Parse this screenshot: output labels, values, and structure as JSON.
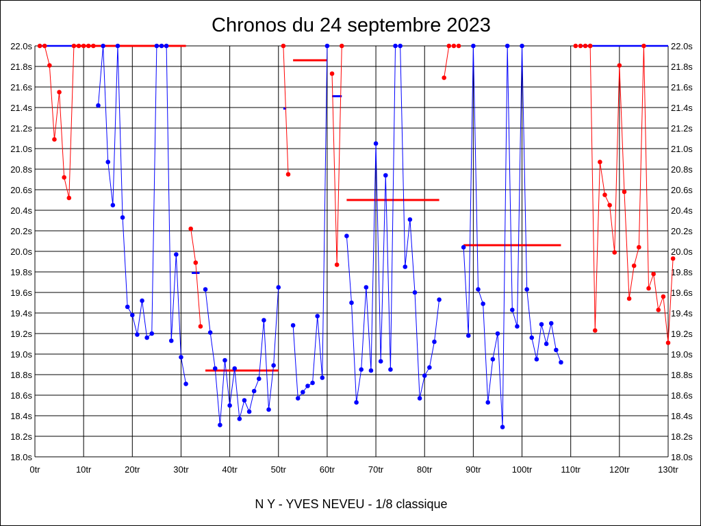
{
  "chart_data": {
    "type": "line",
    "title": "Chronos du 24 septembre 2023",
    "subtitle": "N Y - YVES NEVEU - 1/8 classique",
    "x_range": [
      0,
      130
    ],
    "y_range": [
      18.0,
      22.0
    ],
    "x_ticks": [
      "0tr",
      "10tr",
      "20tr",
      "30tr",
      "40tr",
      "50tr",
      "60tr",
      "70tr",
      "80tr",
      "90tr",
      "100tr",
      "110tr",
      "120tr",
      "130tr"
    ],
    "x_tick_values": [
      0,
      10,
      20,
      30,
      40,
      50,
      60,
      70,
      80,
      90,
      100,
      110,
      120,
      130
    ],
    "y_ticks": [
      "18.0s",
      "18.2s",
      "18.4s",
      "18.6s",
      "18.8s",
      "19.0s",
      "19.2s",
      "19.4s",
      "19.6s",
      "19.8s",
      "20.0s",
      "20.2s",
      "20.4s",
      "20.6s",
      "20.8s",
      "21.0s",
      "21.2s",
      "21.4s",
      "21.6s",
      "21.8s",
      "22.0s"
    ],
    "y_tick_values": [
      18.0,
      18.2,
      18.4,
      18.6,
      18.8,
      19.0,
      19.2,
      19.4,
      19.6,
      19.8,
      20.0,
      20.2,
      20.4,
      20.6,
      20.8,
      21.0,
      21.2,
      21.4,
      21.6,
      21.8,
      22.0
    ],
    "grid": true,
    "colors": {
      "red": "#ff0000",
      "blue": "#0000ff"
    },
    "segments": [
      {
        "color": "red",
        "points": [
          [
            1,
            22.0
          ],
          [
            2,
            22.0
          ],
          [
            3,
            21.81
          ],
          [
            4,
            21.09
          ],
          [
            5,
            21.55
          ],
          [
            6,
            20.72
          ],
          [
            7,
            20.52
          ],
          [
            8,
            22.0
          ]
        ]
      },
      {
        "color": "red",
        "points": [
          [
            9,
            22.0
          ],
          [
            10,
            22.0
          ],
          [
            11,
            22.0
          ],
          [
            12,
            22.0
          ]
        ]
      },
      {
        "color": "blue",
        "points": [
          [
            13,
            21.42
          ],
          [
            14,
            22.0
          ],
          [
            15,
            20.87
          ],
          [
            16,
            20.45
          ],
          [
            17,
            22.0
          ],
          [
            18,
            20.33
          ],
          [
            19,
            19.46
          ],
          [
            20,
            19.38
          ],
          [
            21,
            19.19
          ],
          [
            22,
            19.52
          ],
          [
            23,
            19.16
          ],
          [
            24,
            19.2
          ],
          [
            25,
            22.0
          ],
          [
            26,
            22.0
          ],
          [
            27,
            22.0
          ],
          [
            28,
            19.13
          ],
          [
            29,
            19.97
          ],
          [
            30,
            18.97
          ],
          [
            31,
            18.71
          ]
        ]
      },
      {
        "color": "red",
        "points": [
          [
            32,
            20.22
          ],
          [
            33,
            19.89
          ],
          [
            34,
            19.27
          ]
        ]
      },
      {
        "color": "blue",
        "points": [
          [
            35,
            19.63
          ],
          [
            36,
            19.21
          ],
          [
            37,
            18.86
          ],
          [
            38,
            18.31
          ],
          [
            39,
            18.94
          ],
          [
            40,
            18.5
          ],
          [
            41,
            18.86
          ],
          [
            42,
            18.37
          ],
          [
            43,
            18.55
          ],
          [
            44,
            18.44
          ],
          [
            45,
            18.64
          ],
          [
            46,
            18.76
          ],
          [
            47,
            19.33
          ],
          [
            48,
            18.46
          ],
          [
            49,
            18.89
          ],
          [
            50,
            19.65
          ]
        ]
      },
      {
        "color": "red",
        "points": [
          [
            51,
            22.0
          ],
          [
            52,
            20.75
          ]
        ]
      },
      {
        "color": "blue",
        "points": [
          [
            53,
            19.28
          ],
          [
            54,
            18.57
          ],
          [
            55,
            18.63
          ],
          [
            56,
            18.69
          ],
          [
            57,
            18.72
          ],
          [
            58,
            19.37
          ],
          [
            59,
            18.77
          ],
          [
            60,
            22.0
          ]
        ]
      },
      {
        "color": "red",
        "points": [
          [
            61,
            21.73
          ],
          [
            62,
            19.87
          ],
          [
            63,
            22.0
          ]
        ]
      },
      {
        "color": "blue",
        "points": [
          [
            64,
            20.15
          ],
          [
            65,
            19.5
          ],
          [
            66,
            18.53
          ],
          [
            67,
            18.85
          ],
          [
            68,
            19.65
          ],
          [
            69,
            18.84
          ],
          [
            70,
            21.05
          ],
          [
            71,
            18.93
          ],
          [
            72,
            20.74
          ],
          [
            73,
            18.85
          ],
          [
            74,
            22.0
          ],
          [
            75,
            22.0
          ],
          [
            76,
            19.85
          ],
          [
            77,
            20.31
          ],
          [
            78,
            19.6
          ],
          [
            79,
            18.57
          ],
          [
            80,
            18.79
          ],
          [
            81,
            18.87
          ],
          [
            82,
            19.12
          ],
          [
            83,
            19.53
          ]
        ]
      },
      {
        "color": "red",
        "points": [
          [
            84,
            21.69
          ],
          [
            85,
            22.0
          ],
          [
            86,
            22.0
          ],
          [
            87,
            22.0
          ]
        ]
      },
      {
        "color": "blue",
        "points": [
          [
            88,
            20.04
          ],
          [
            89,
            19.18
          ],
          [
            90,
            22.0
          ],
          [
            91,
            19.63
          ],
          [
            92,
            19.49
          ],
          [
            93,
            18.53
          ],
          [
            94,
            18.95
          ],
          [
            95,
            19.2
          ],
          [
            96,
            18.29
          ],
          [
            97,
            22.0
          ],
          [
            98,
            19.43
          ],
          [
            99,
            19.27
          ],
          [
            100,
            22.0
          ],
          [
            101,
            19.63
          ],
          [
            102,
            19.16
          ],
          [
            103,
            18.95
          ],
          [
            104,
            19.29
          ],
          [
            105,
            19.1
          ],
          [
            106,
            19.3
          ],
          [
            107,
            19.04
          ],
          [
            108,
            18.92
          ]
        ]
      },
      {
        "color": "red",
        "points": [
          [
            111,
            22.0
          ],
          [
            112,
            22.0
          ],
          [
            113,
            22.0
          ],
          [
            114,
            22.0
          ]
        ]
      },
      {
        "color": "red",
        "points": [
          [
            114,
            22.0
          ],
          [
            115,
            19.23
          ],
          [
            116,
            20.87
          ],
          [
            117,
            20.55
          ],
          [
            118,
            20.45
          ],
          [
            119,
            19.99
          ],
          [
            120,
            21.81
          ],
          [
            121,
            20.58
          ],
          [
            122,
            19.54
          ],
          [
            123,
            19.86
          ],
          [
            124,
            20.04
          ],
          [
            125,
            22.0
          ],
          [
            126,
            19.64
          ],
          [
            127,
            19.78
          ],
          [
            128,
            19.43
          ],
          [
            129,
            19.56
          ],
          [
            130,
            19.11
          ],
          [
            131,
            19.93
          ]
        ]
      }
    ],
    "lines_without_markers": [
      {
        "color": "blue",
        "points": [
          [
            1,
            22.0
          ],
          [
            8,
            22.0
          ]
        ]
      },
      {
        "color": "blue",
        "points": [
          [
            112,
            22.0
          ],
          [
            130,
            22.0
          ]
        ]
      }
    ],
    "average_lines": [
      {
        "color": "red",
        "x": [
          8,
          31
        ],
        "y": 22.0
      },
      {
        "color": "blue",
        "x": [
          32.2,
          33.8
        ],
        "y": 19.79
      },
      {
        "color": "red",
        "x": [
          35,
          50
        ],
        "y": 18.84
      },
      {
        "color": "blue",
        "x": [
          51,
          51.6
        ],
        "y": 21.39
      },
      {
        "color": "red",
        "x": [
          53,
          60
        ],
        "y": 21.86
      },
      {
        "color": "blue",
        "x": [
          61,
          63
        ],
        "y": 21.51
      },
      {
        "color": "red",
        "x": [
          64,
          83
        ],
        "y": 20.5
      },
      {
        "color": "red",
        "x": [
          88,
          108
        ],
        "y": 20.06
      }
    ]
  }
}
